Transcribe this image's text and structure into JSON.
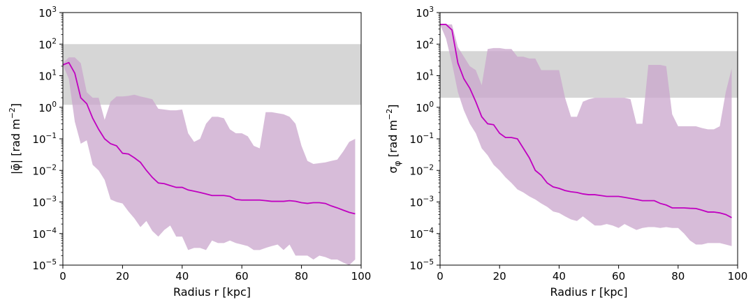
{
  "colors": {
    "line": "#c000c0",
    "band": "#c9a6cc",
    "grey_band": "#c8c8c8",
    "axis": "#000000"
  },
  "chart_data": [
    {
      "type": "line",
      "xlabel": "Radius r [kpc]",
      "ylabel": "|φ̄| [rad m⁻²]",
      "ylabel_parts": {
        "main": "|φ̄| [rad m",
        "sup": "−2",
        "close": "]"
      },
      "xlim": [
        0,
        100
      ],
      "ylim": [
        1e-05,
        1000
      ],
      "yscale": "log",
      "grid": false,
      "x_ticks": [
        0,
        20,
        40,
        60,
        80,
        100
      ],
      "x_tick_labels": [
        "0",
        "20",
        "40",
        "60",
        "80",
        "100"
      ],
      "y_ticks": [
        1e-05,
        0.0001,
        0.001,
        0.01,
        0.1,
        1,
        10,
        100,
        1000
      ],
      "y_tick_labels": [
        {
          "base": "10",
          "exp": "−5"
        },
        {
          "base": "10",
          "exp": "−4"
        },
        {
          "base": "10",
          "exp": "−3"
        },
        {
          "base": "10",
          "exp": "−2"
        },
        {
          "base": "10",
          "exp": "−1"
        },
        {
          "base": "10",
          "exp": "0"
        },
        {
          "base": "10",
          "exp": "1"
        },
        {
          "base": "10",
          "exp": "2"
        },
        {
          "base": "10",
          "exp": "3"
        }
      ],
      "reference_band": [
        1.2,
        100
      ],
      "x": [
        0,
        2,
        4,
        6,
        8,
        10,
        12,
        14,
        16,
        18,
        20,
        22,
        24,
        26,
        28,
        30,
        32,
        34,
        36,
        38,
        40,
        42,
        44,
        46,
        48,
        50,
        52,
        54,
        56,
        58,
        60,
        62,
        64,
        66,
        68,
        70,
        72,
        74,
        76,
        78,
        80,
        82,
        84,
        86,
        88,
        90,
        92,
        94,
        96,
        98
      ],
      "median": [
        22,
        26,
        12,
        2.0,
        1.3,
        0.45,
        0.2,
        0.1,
        0.07,
        0.06,
        0.035,
        0.033,
        0.025,
        0.018,
        0.01,
        0.006,
        0.004,
        0.0038,
        0.0033,
        0.0029,
        0.0029,
        0.0024,
        0.0022,
        0.002,
        0.0018,
        0.0016,
        0.0016,
        0.0016,
        0.0015,
        0.0012,
        0.00115,
        0.00115,
        0.00115,
        0.00115,
        0.0011,
        0.00105,
        0.00105,
        0.00105,
        0.0011,
        0.00105,
        0.00095,
        0.0009,
        0.00095,
        0.00095,
        0.0009,
        0.00075,
        0.00065,
        0.00055,
        0.00047,
        0.00042
      ],
      "upper": [
        25,
        38,
        38,
        25,
        3,
        2,
        2,
        0.4,
        1.5,
        2.2,
        2.2,
        2.3,
        2.5,
        2.2,
        2.0,
        1.8,
        0.9,
        0.85,
        0.8,
        0.8,
        0.85,
        0.15,
        0.08,
        0.1,
        0.3,
        0.5,
        0.5,
        0.45,
        0.2,
        0.15,
        0.15,
        0.12,
        0.06,
        0.05,
        0.7,
        0.7,
        0.65,
        0.6,
        0.5,
        0.3,
        0.06,
        0.02,
        0.016,
        0.017,
        0.018,
        0.02,
        0.022,
        0.04,
        0.08,
        0.1
      ],
      "lower": [
        22,
        8,
        0.35,
        0.07,
        0.09,
        0.015,
        0.01,
        0.005,
        0.0012,
        0.001,
        0.0009,
        0.0005,
        0.0003,
        0.00016,
        0.00025,
        0.00012,
        8e-05,
        0.00013,
        0.00018,
        8e-05,
        8e-05,
        3e-05,
        3.5e-05,
        3.5e-05,
        3e-05,
        6e-05,
        5e-05,
        5e-05,
        6e-05,
        5e-05,
        4.5e-05,
        4e-05,
        3e-05,
        3e-05,
        3.5e-05,
        4e-05,
        4.5e-05,
        3e-05,
        4.5e-05,
        2e-05,
        2e-05,
        2e-05,
        1.5e-05,
        2e-05,
        1.8e-05,
        1.5e-05,
        1.5e-05,
        1.2e-05,
        1e-05,
        1.5e-05
      ]
    },
    {
      "type": "line",
      "xlabel": "Radius r [kpc]",
      "ylabel": "σφ [rad m⁻²]",
      "ylabel_parts": {
        "main": "σ",
        "sub": "φ",
        "rest": " [rad m",
        "sup": "−2",
        "close": "]"
      },
      "xlim": [
        0,
        100
      ],
      "ylim": [
        1e-05,
        1000
      ],
      "yscale": "log",
      "grid": false,
      "x_ticks": [
        0,
        20,
        40,
        60,
        80,
        100
      ],
      "x_tick_labels": [
        "0",
        "20",
        "40",
        "60",
        "80",
        "100"
      ],
      "y_ticks": [
        1e-05,
        0.0001,
        0.001,
        0.01,
        0.1,
        1,
        10,
        100,
        1000
      ],
      "y_tick_labels": [
        {
          "base": "10",
          "exp": "−5"
        },
        {
          "base": "10",
          "exp": "−4"
        },
        {
          "base": "10",
          "exp": "−3"
        },
        {
          "base": "10",
          "exp": "−2"
        },
        {
          "base": "10",
          "exp": "−1"
        },
        {
          "base": "10",
          "exp": "0"
        },
        {
          "base": "10",
          "exp": "1"
        },
        {
          "base": "10",
          "exp": "2"
        },
        {
          "base": "10",
          "exp": "3"
        }
      ],
      "reference_band": [
        2,
        60
      ],
      "x": [
        0,
        2,
        4,
        6,
        8,
        10,
        12,
        14,
        16,
        18,
        20,
        22,
        24,
        26,
        28,
        30,
        32,
        34,
        36,
        38,
        40,
        42,
        44,
        46,
        48,
        50,
        52,
        54,
        56,
        58,
        60,
        62,
        64,
        66,
        68,
        70,
        72,
        74,
        76,
        78,
        80,
        82,
        84,
        86,
        88,
        90,
        92,
        94,
        96,
        98
      ],
      "median": [
        420,
        420,
        280,
        25,
        8,
        4,
        1.5,
        0.5,
        0.3,
        0.28,
        0.15,
        0.11,
        0.11,
        0.1,
        0.05,
        0.025,
        0.01,
        0.007,
        0.004,
        0.003,
        0.0027,
        0.0023,
        0.0021,
        0.002,
        0.0018,
        0.0017,
        0.0017,
        0.0016,
        0.0015,
        0.0015,
        0.0015,
        0.0014,
        0.0013,
        0.0012,
        0.0011,
        0.0011,
        0.0011,
        0.0009,
        0.0008,
        0.00065,
        0.00065,
        0.00065,
        0.00063,
        0.00062,
        0.00055,
        0.00048,
        0.00048,
        0.00045,
        0.0004,
        0.00032
      ],
      "upper": [
        420,
        420,
        420,
        80,
        40,
        20,
        15,
        5,
        70,
        75,
        75,
        70,
        70,
        40,
        40,
        35,
        35,
        15,
        15,
        15,
        15,
        2,
        0.5,
        0.5,
        1.5,
        1.8,
        2.0,
        2.0,
        2.0,
        2.0,
        2.0,
        2.0,
        1.8,
        0.3,
        0.3,
        22,
        22,
        22,
        20,
        0.6,
        0.25,
        0.25,
        0.25,
        0.25,
        0.22,
        0.2,
        0.2,
        0.25,
        3,
        17
      ],
      "lower": [
        420,
        150,
        25,
        3,
        0.8,
        0.3,
        0.15,
        0.05,
        0.03,
        0.015,
        0.01,
        0.006,
        0.004,
        0.0025,
        0.002,
        0.0015,
        0.0012,
        0.0009,
        0.0007,
        0.0005,
        0.00045,
        0.00035,
        0.00028,
        0.00025,
        0.00035,
        0.00025,
        0.00018,
        0.00018,
        0.0002,
        0.00018,
        0.00015,
        0.0002,
        0.00016,
        0.00013,
        0.00015,
        0.00016,
        0.00016,
        0.00015,
        0.00016,
        0.00015,
        0.00015,
        0.0001,
        6e-05,
        4.5e-05,
        4.5e-05,
        5e-05,
        5e-05,
        5e-05,
        4.5e-05,
        4e-05
      ]
    }
  ]
}
